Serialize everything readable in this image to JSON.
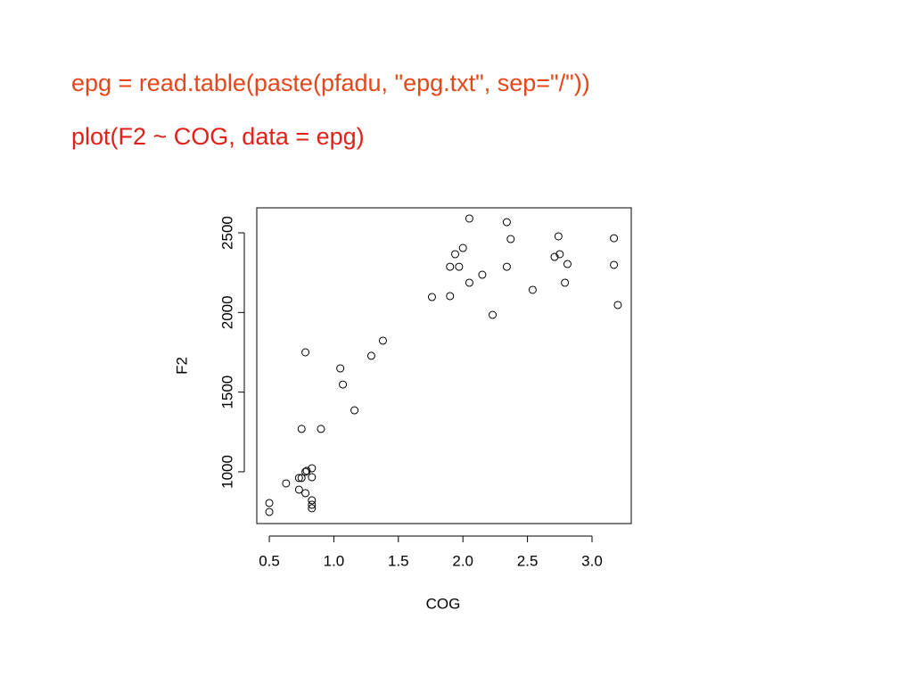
{
  "slide": {
    "lines": [
      {
        "text": "epg = read.table(paste(pfadu, \"epg.txt\", sep=\"/\"))",
        "color": "#e5461a"
      },
      {
        "text": "plot(F2 ~ COG, data = epg)",
        "color": "#e2201a"
      }
    ]
  },
  "chart_data": {
    "type": "scatter",
    "x_label": "COG",
    "y_label": "F2",
    "color": "#000000",
    "x": [
      0.5,
      0.5,
      0.63,
      0.73,
      0.73,
      0.75,
      0.78,
      0.79,
      0.78,
      0.83,
      0.83,
      0.83,
      0.83,
      0.83,
      0.75,
      0.9,
      0.78,
      1.05,
      1.07,
      1.16,
      1.29,
      1.38,
      1.76,
      1.9,
      1.9,
      1.94,
      1.97,
      2.0,
      2.05,
      2.05,
      2.15,
      2.23,
      2.34,
      2.34,
      2.37,
      2.54,
      2.71,
      2.75,
      2.74,
      2.79,
      2.81,
      3.17,
      3.17,
      3.2
    ],
    "values": [
      804,
      748,
      927,
      961,
      888,
      961,
      1000,
      1006,
      866,
      1022,
      966,
      821,
      793,
      771,
      1269,
      1269,
      1750,
      1649,
      1548,
      1386,
      1728,
      1823,
      2097,
      2103,
      2287,
      2366,
      2287,
      2405,
      2590,
      2187,
      2237,
      1985,
      2567,
      2287,
      2461,
      2142,
      2349,
      2366,
      2478,
      2187,
      2304,
      2466,
      2299,
      2047
    ],
    "xlim": [
      0.403,
      3.304
    ],
    "ylim": [
      675,
      2657
    ],
    "xticks": [
      0.5,
      {
        "value": 1,
        "label": "1.0"
      },
      1.5,
      {
        "value": 2,
        "label": "2.0"
      },
      2.5,
      {
        "value": 3,
        "label": "3.0"
      }
    ],
    "yticks": [
      1000,
      1500,
      2000,
      2500
    ]
  }
}
